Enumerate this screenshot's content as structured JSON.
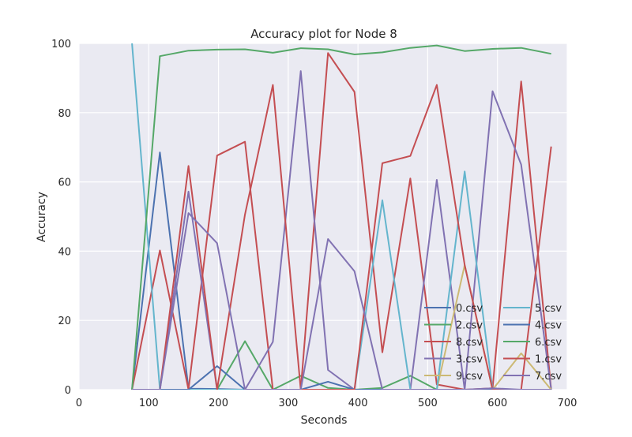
{
  "chart_data": {
    "type": "line",
    "title": "Accuracy plot for Node 8",
    "xlabel": "Seconds",
    "ylabel": "Accuracy",
    "xlim": [
      0,
      700
    ],
    "ylim": [
      0,
      100
    ],
    "x_ticks": [
      0,
      100,
      200,
      300,
      400,
      500,
      600,
      700
    ],
    "y_ticks": [
      0,
      20,
      40,
      60,
      80,
      100
    ],
    "grid": true,
    "legend_position": "lower-right",
    "legend_columns": 2,
    "x": [
      76,
      116,
      157,
      198,
      238,
      278,
      318,
      357,
      395,
      435,
      475,
      513,
      553,
      593,
      634,
      677
    ],
    "series": [
      {
        "name": "0.csv",
        "color": "#4c72b0",
        "values": [
          0,
          68.5,
          0.3,
          0.2,
          0,
          0,
          0,
          0,
          0,
          0,
          0,
          0,
          0,
          0,
          0,
          0
        ]
      },
      {
        "name": "2.csv",
        "color": "#55a868",
        "values": [
          0,
          0,
          0,
          0,
          14,
          0,
          4,
          0.5,
          0,
          0.5,
          4,
          0,
          0,
          0,
          0,
          0
        ]
      },
      {
        "name": "8.csv",
        "color": "#c44e52",
        "values": [
          0,
          40.2,
          0,
          67.6,
          71.6,
          0,
          0,
          97.2,
          86,
          10.8,
          61,
          1.5,
          0,
          0.4,
          89,
          0
        ]
      },
      {
        "name": "3.csv",
        "color": "#8172b2",
        "values": [
          0,
          0,
          57.2,
          0,
          0,
          13.8,
          92,
          5.7,
          0,
          0,
          0,
          60.6,
          0,
          86.2,
          65,
          0
        ]
      },
      {
        "name": "9.csv",
        "color": "#ccb974",
        "values": [
          0,
          0,
          0,
          0,
          0,
          0,
          0,
          0,
          0,
          0,
          0,
          0,
          36,
          0,
          10.5,
          0
        ]
      },
      {
        "name": "5.csv",
        "color": "#64b5cd",
        "values": [
          100,
          0,
          0,
          0,
          0,
          0,
          0,
          0,
          0,
          54.7,
          0,
          0,
          63,
          0,
          0,
          0
        ]
      },
      {
        "name": "4.csv",
        "color": "#4c72b0",
        "values": [
          0,
          0,
          0,
          6.8,
          0,
          0,
          0,
          2.3,
          0,
          0,
          0,
          0,
          0,
          0,
          0,
          0
        ]
      },
      {
        "name": "6.csv",
        "color": "#55a868",
        "values": [
          0,
          96.3,
          97.9,
          98.2,
          98.3,
          97.3,
          98.6,
          98.3,
          96.8,
          97.4,
          98.7,
          99.4,
          97.8,
          98.4,
          98.7,
          97
        ]
      },
      {
        "name": "1.csv",
        "color": "#c44e52",
        "values": [
          0,
          0,
          64.6,
          0,
          50.6,
          88,
          0,
          0,
          0,
          65.4,
          67.5,
          88,
          36,
          0,
          0,
          70.2
        ]
      },
      {
        "name": "7.csv",
        "color": "#8172b2",
        "values": [
          0,
          0,
          51,
          42.3,
          0,
          0,
          0,
          43.5,
          34.2,
          0,
          0,
          0,
          0,
          0.4,
          0,
          0
        ]
      }
    ]
  }
}
